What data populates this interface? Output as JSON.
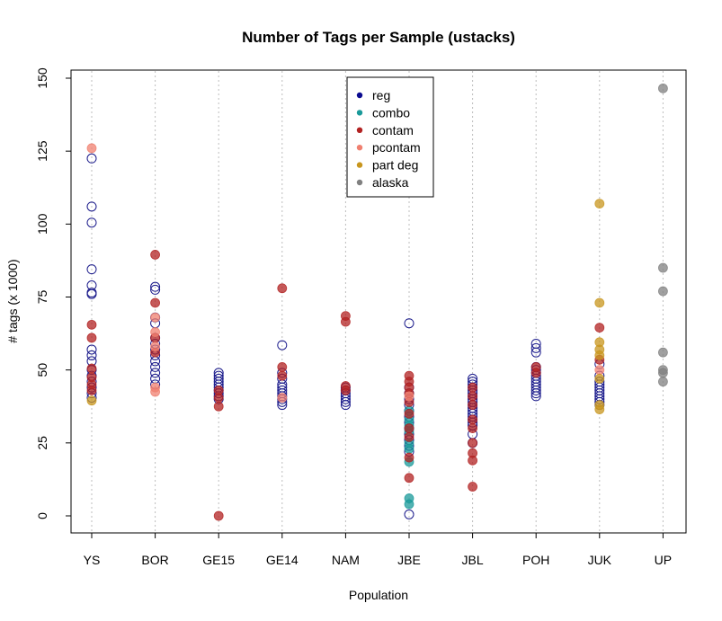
{
  "chart_data": {
    "type": "scatter",
    "title": "Number of Tags per Sample (ustacks)",
    "xlabel": "Population",
    "ylabel": "# tags (x 1000)",
    "categories": [
      "YS",
      "BOR",
      "GE15",
      "GE14",
      "NAM",
      "JBE",
      "JBL",
      "POH",
      "JUK",
      "UP"
    ],
    "ylim": [
      -6,
      152
    ],
    "yticks": [
      0,
      25,
      50,
      75,
      100,
      125,
      150
    ],
    "grid": "vertical dotted at each category",
    "legend_position": "top-center",
    "series": [
      {
        "name": "reg",
        "color": "#1c1c8c",
        "marker": "open-circle",
        "points": [
          [
            "YS",
            122.5
          ],
          [
            "YS",
            106
          ],
          [
            "YS",
            100.5
          ],
          [
            "YS",
            84.5
          ],
          [
            "YS",
            79
          ],
          [
            "YS",
            76.5
          ],
          [
            "YS",
            76
          ],
          [
            "YS",
            57
          ],
          [
            "YS",
            55
          ],
          [
            "YS",
            53
          ],
          [
            "YS",
            50
          ],
          [
            "YS",
            48
          ],
          [
            "YS",
            46
          ],
          [
            "YS",
            44
          ],
          [
            "YS",
            42
          ],
          [
            "YS",
            40.5
          ],
          [
            "BOR",
            78.5
          ],
          [
            "BOR",
            77.5
          ],
          [
            "BOR",
            68
          ],
          [
            "BOR",
            66
          ],
          [
            "BOR",
            61
          ],
          [
            "BOR",
            59
          ],
          [
            "BOR",
            57
          ],
          [
            "BOR",
            55
          ],
          [
            "BOR",
            53
          ],
          [
            "BOR",
            51
          ],
          [
            "BOR",
            49
          ],
          [
            "BOR",
            47
          ],
          [
            "BOR",
            45
          ],
          [
            "GE15",
            49
          ],
          [
            "GE15",
            48
          ],
          [
            "GE15",
            47
          ],
          [
            "GE15",
            46
          ],
          [
            "GE15",
            45
          ],
          [
            "GE15",
            44
          ],
          [
            "GE15",
            43
          ],
          [
            "GE15",
            42
          ],
          [
            "GE15",
            41
          ],
          [
            "GE15",
            40
          ],
          [
            "GE14",
            58.5
          ],
          [
            "GE14",
            49
          ],
          [
            "GE14",
            47
          ],
          [
            "GE14",
            45
          ],
          [
            "GE14",
            44
          ],
          [
            "GE14",
            43
          ],
          [
            "GE14",
            42
          ],
          [
            "GE14",
            41
          ],
          [
            "GE14",
            40
          ],
          [
            "GE14",
            39
          ],
          [
            "GE14",
            38
          ],
          [
            "NAM",
            44
          ],
          [
            "NAM",
            43
          ],
          [
            "NAM",
            42
          ],
          [
            "NAM",
            41
          ],
          [
            "NAM",
            40
          ],
          [
            "NAM",
            39
          ],
          [
            "NAM",
            38
          ],
          [
            "JBE",
            66
          ],
          [
            "JBE",
            44
          ],
          [
            "JBE",
            42
          ],
          [
            "JBE",
            40
          ],
          [
            "JBE",
            38
          ],
          [
            "JBE",
            36
          ],
          [
            "JBE",
            34
          ],
          [
            "JBE",
            32
          ],
          [
            "JBE",
            30
          ],
          [
            "JBE",
            28
          ],
          [
            "JBE",
            26
          ],
          [
            "JBE",
            24
          ],
          [
            "JBE",
            22
          ],
          [
            "JBE",
            0.5
          ],
          [
            "JBL",
            47
          ],
          [
            "JBL",
            46
          ],
          [
            "JBL",
            45
          ],
          [
            "JBL",
            44
          ],
          [
            "JBL",
            43
          ],
          [
            "JBL",
            42
          ],
          [
            "JBL",
            41
          ],
          [
            "JBL",
            40
          ],
          [
            "JBL",
            39
          ],
          [
            "JBL",
            38
          ],
          [
            "JBL",
            37
          ],
          [
            "JBL",
            36
          ],
          [
            "JBL",
            35
          ],
          [
            "JBL",
            34
          ],
          [
            "JBL",
            33
          ],
          [
            "JBL",
            32
          ],
          [
            "JBL",
            31
          ],
          [
            "JBL",
            28
          ],
          [
            "JBL",
            25
          ],
          [
            "POH",
            59
          ],
          [
            "POH",
            57.5
          ],
          [
            "POH",
            56
          ],
          [
            "POH",
            51
          ],
          [
            "POH",
            50
          ],
          [
            "POH",
            49
          ],
          [
            "POH",
            48
          ],
          [
            "POH",
            47
          ],
          [
            "POH",
            46
          ],
          [
            "POH",
            45
          ],
          [
            "POH",
            44
          ],
          [
            "POH",
            43
          ],
          [
            "POH",
            42
          ],
          [
            "POH",
            41
          ],
          [
            "JUK",
            52
          ],
          [
            "JUK",
            48
          ],
          [
            "JUK",
            46
          ],
          [
            "JUK",
            45
          ],
          [
            "JUK",
            44
          ],
          [
            "JUK",
            43
          ],
          [
            "JUK",
            42
          ],
          [
            "JUK",
            41
          ],
          [
            "JUK",
            40
          ],
          [
            "JUK",
            39
          ],
          [
            "JUK",
            38
          ]
        ]
      },
      {
        "name": "combo",
        "color": "#1a9a9a",
        "marker": "filled-circle",
        "points": [
          [
            "JBE",
            36
          ],
          [
            "JBE",
            33
          ],
          [
            "JBE",
            31
          ],
          [
            "JBE",
            29
          ],
          [
            "JBE",
            25
          ],
          [
            "JBE",
            23
          ],
          [
            "JBE",
            18.5
          ],
          [
            "JBE",
            6
          ],
          [
            "JBE",
            4
          ]
        ]
      },
      {
        "name": "contam",
        "color": "#b22222",
        "marker": "filled-circle",
        "points": [
          [
            "YS",
            65.5
          ],
          [
            "YS",
            61
          ],
          [
            "YS",
            50.5
          ],
          [
            "YS",
            47.5
          ],
          [
            "YS",
            45
          ],
          [
            "YS",
            43
          ],
          [
            "BOR",
            89.5
          ],
          [
            "BOR",
            73
          ],
          [
            "BOR",
            61
          ],
          [
            "BOR",
            56
          ],
          [
            "GE15",
            43
          ],
          [
            "GE15",
            40.5
          ],
          [
            "GE15",
            37.5
          ],
          [
            "GE15",
            0
          ],
          [
            "GE14",
            78
          ],
          [
            "GE14",
            51
          ],
          [
            "GE14",
            48
          ],
          [
            "NAM",
            68.5
          ],
          [
            "NAM",
            66.5
          ],
          [
            "NAM",
            44.5
          ],
          [
            "NAM",
            43
          ],
          [
            "JBE",
            48
          ],
          [
            "JBE",
            46
          ],
          [
            "JBE",
            44
          ],
          [
            "JBE",
            42
          ],
          [
            "JBE",
            39
          ],
          [
            "JBE",
            35
          ],
          [
            "JBE",
            30
          ],
          [
            "JBE",
            27
          ],
          [
            "JBE",
            20
          ],
          [
            "JBE",
            13
          ],
          [
            "JBL",
            44
          ],
          [
            "JBL",
            41
          ],
          [
            "JBL",
            38
          ],
          [
            "JBL",
            33
          ],
          [
            "JBL",
            30
          ],
          [
            "JBL",
            25
          ],
          [
            "JBL",
            21.5
          ],
          [
            "JBL",
            19
          ],
          [
            "JBL",
            10
          ],
          [
            "POH",
            51
          ],
          [
            "POH",
            49
          ],
          [
            "JUK",
            64.5
          ],
          [
            "JUK",
            53.5
          ]
        ]
      },
      {
        "name": "pcontam",
        "color": "#f08070",
        "marker": "filled-circle",
        "points": [
          [
            "YS",
            126
          ],
          [
            "BOR",
            68
          ],
          [
            "BOR",
            63
          ],
          [
            "BOR",
            58
          ],
          [
            "BOR",
            44
          ],
          [
            "BOR",
            42.5
          ],
          [
            "GE14",
            40.5
          ],
          [
            "JUK",
            50
          ],
          [
            "JBE",
            41
          ]
        ]
      },
      {
        "name": "part deg",
        "color": "#c8961e",
        "marker": "filled-circle",
        "points": [
          [
            "YS",
            39.5
          ],
          [
            "JUK",
            107
          ],
          [
            "JUK",
            73
          ],
          [
            "JUK",
            59.5
          ],
          [
            "JUK",
            57
          ],
          [
            "JUK",
            55
          ],
          [
            "JUK",
            47
          ],
          [
            "JUK",
            38
          ],
          [
            "JUK",
            36.5
          ]
        ]
      },
      {
        "name": "alaska",
        "color": "#808080",
        "marker": "filled-circle",
        "points": [
          [
            "UP",
            146.5
          ],
          [
            "UP",
            85
          ],
          [
            "UP",
            77
          ],
          [
            "UP",
            56
          ],
          [
            "UP",
            50
          ],
          [
            "UP",
            49
          ],
          [
            "UP",
            46
          ]
        ]
      }
    ]
  }
}
